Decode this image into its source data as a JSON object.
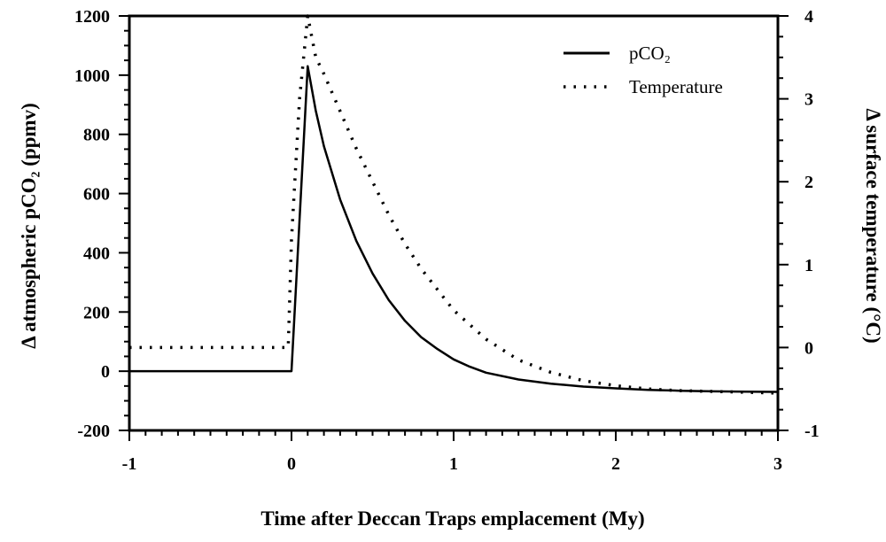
{
  "chart_data": {
    "type": "line",
    "title": "",
    "xlabel": "Time after Deccan Traps emplacement (My)",
    "ylabel_left": "Δ atmospheric pCO₂ (ppmv)",
    "ylabel_right": "Δ surface temperature (°C)",
    "xlim": [
      -1,
      3
    ],
    "ylim_left": [
      -200,
      1200
    ],
    "ylim_right": [
      -1,
      4
    ],
    "x_ticks": [
      -1,
      0,
      1,
      2,
      3
    ],
    "y_left_ticks": [
      -200,
      0,
      200,
      400,
      600,
      800,
      1000,
      1200
    ],
    "y_right_ticks": [
      -1,
      0,
      1,
      2,
      3,
      4
    ],
    "legend_position": "top-right",
    "series": [
      {
        "name": "pCO₂",
        "axis": "left",
        "style": "solid",
        "x": [
          -1,
          0,
          0.1,
          0.15,
          0.2,
          0.3,
          0.4,
          0.5,
          0.6,
          0.7,
          0.8,
          0.9,
          1.0,
          1.1,
          1.2,
          1.4,
          1.6,
          1.8,
          2.0,
          2.2,
          2.4,
          2.6,
          2.8,
          3.0
        ],
        "values": [
          0,
          0,
          1030,
          880,
          760,
          580,
          440,
          330,
          240,
          170,
          115,
          75,
          40,
          15,
          -5,
          -28,
          -42,
          -52,
          -58,
          -63,
          -66,
          -68,
          -69,
          -70
        ]
      },
      {
        "name": "Temperature",
        "axis": "right",
        "style": "dotted",
        "x": [
          -1,
          -0.02,
          0,
          0.05,
          0.1,
          0.15,
          0.2,
          0.3,
          0.4,
          0.5,
          0.6,
          0.7,
          0.8,
          0.9,
          1.0,
          1.2,
          1.4,
          1.6,
          1.8,
          2.0,
          2.2,
          2.4,
          2.6,
          2.8,
          3.0
        ],
        "values": [
          0,
          0,
          1.3,
          3.0,
          4.0,
          3.5,
          3.3,
          2.85,
          2.4,
          2.0,
          1.6,
          1.25,
          0.95,
          0.7,
          0.45,
          0.1,
          -0.15,
          -0.3,
          -0.4,
          -0.46,
          -0.5,
          -0.52,
          -0.53,
          -0.54,
          -0.55
        ]
      }
    ]
  }
}
